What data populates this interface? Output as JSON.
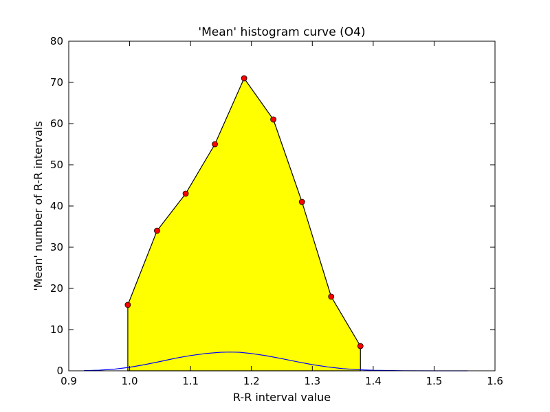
{
  "chart_data": {
    "type": "area",
    "title": "'Mean' histogram curve (O4)",
    "xlabel": "R-R interval value",
    "ylabel": "'Mean' number of R-R intervals",
    "xlim": [
      0.9,
      1.6
    ],
    "ylim": [
      0,
      80
    ],
    "x_ticks": [
      0.9,
      1.0,
      1.1,
      1.2,
      1.3,
      1.4,
      1.5,
      1.6
    ],
    "x_tick_labels": [
      "0.9",
      "1.0",
      "1.1",
      "1.2",
      "1.3",
      "1.4",
      "1.5",
      "1.6"
    ],
    "y_ticks": [
      0,
      10,
      20,
      30,
      40,
      50,
      60,
      70,
      80
    ],
    "y_tick_labels": [
      "0",
      "10",
      "20",
      "30",
      "40",
      "50",
      "60",
      "70",
      "80"
    ],
    "grid": false,
    "series": [
      {
        "kind": "filled-area-with-markers",
        "x": [
          0.997,
          1.045,
          1.092,
          1.14,
          1.188,
          1.236,
          1.283,
          1.331,
          1.379
        ],
        "y": [
          16,
          34,
          43,
          55,
          71,
          61,
          41,
          18,
          6
        ],
        "fill_color": "#ffff00",
        "line_color": "#000000",
        "marker_color": "#ff0000"
      },
      {
        "kind": "gaussian-curve",
        "x": [
          0.925,
          0.95,
          0.975,
          1.0,
          1.025,
          1.05,
          1.075,
          1.1,
          1.125,
          1.15,
          1.165,
          1.18,
          1.2,
          1.225,
          1.25,
          1.275,
          1.3,
          1.325,
          1.35,
          1.375,
          1.4,
          1.45,
          1.5,
          1.555
        ],
        "y": [
          0.05,
          0.16,
          0.4,
          0.85,
          1.5,
          2.25,
          3.05,
          3.7,
          4.2,
          4.5,
          4.55,
          4.5,
          4.2,
          3.65,
          2.95,
          2.2,
          1.5,
          0.95,
          0.52,
          0.26,
          0.12,
          0.02,
          0.0,
          0.0
        ],
        "line_color": "#0000ff"
      }
    ]
  }
}
